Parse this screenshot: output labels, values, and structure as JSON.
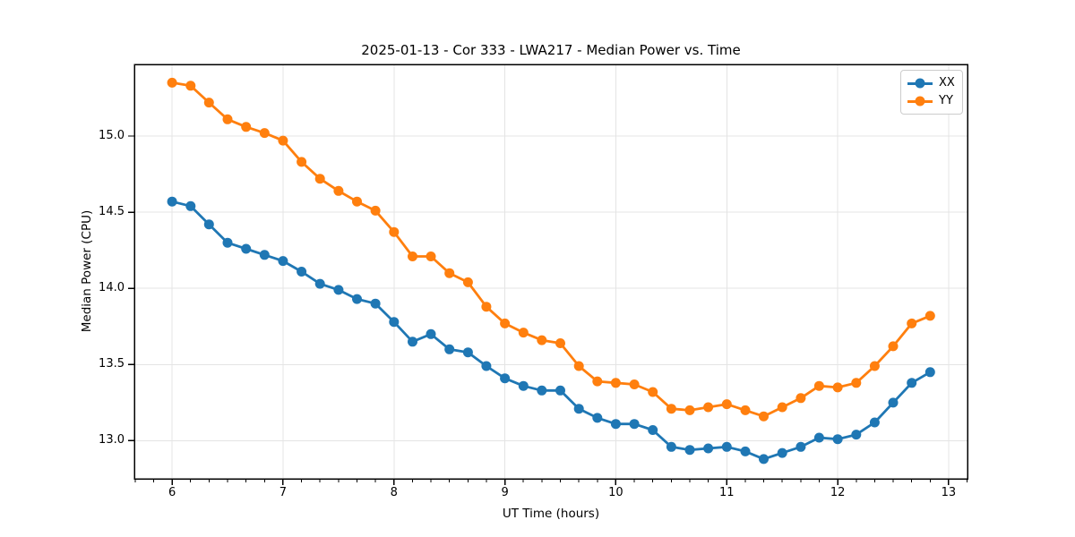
{
  "chart_data": {
    "type": "line",
    "title": "2025-01-13 - Cor 333 - LWA217 - Median Power vs. Time",
    "xlabel": "UT Time (hours)",
    "ylabel": "Median Power (CPU)",
    "x": [
      6.0,
      6.167,
      6.333,
      6.5,
      6.667,
      6.833,
      7.0,
      7.167,
      7.333,
      7.5,
      7.667,
      7.833,
      8.0,
      8.167,
      8.333,
      8.5,
      8.667,
      8.833,
      9.0,
      9.167,
      9.333,
      9.5,
      9.667,
      9.833,
      10.0,
      10.167,
      10.333,
      10.5,
      10.667,
      10.833,
      11.0,
      11.167,
      11.333,
      11.5,
      11.667,
      11.833,
      12.0,
      12.167,
      12.333,
      12.5,
      12.667,
      12.833
    ],
    "series": [
      {
        "name": "XX",
        "color": "#1f77b4",
        "values": [
          14.57,
          14.54,
          14.42,
          14.3,
          14.26,
          14.22,
          14.18,
          14.11,
          14.03,
          13.99,
          13.93,
          13.9,
          13.78,
          13.65,
          13.7,
          13.6,
          13.58,
          13.49,
          13.41,
          13.36,
          13.33,
          13.33,
          13.21,
          13.15,
          13.11,
          13.11,
          13.07,
          12.96,
          12.94,
          12.95,
          12.96,
          12.93,
          12.88,
          12.92,
          12.96,
          13.02,
          13.01,
          13.04,
          13.12,
          13.25,
          13.38,
          13.45
        ]
      },
      {
        "name": "YY",
        "color": "#ff7f0e",
        "values": [
          15.35,
          15.33,
          15.22,
          15.11,
          15.06,
          15.02,
          14.97,
          14.83,
          14.72,
          14.64,
          14.57,
          14.51,
          14.37,
          14.21,
          14.21,
          14.1,
          14.04,
          13.88,
          13.77,
          13.71,
          13.66,
          13.64,
          13.49,
          13.39,
          13.38,
          13.37,
          13.32,
          13.21,
          13.2,
          13.22,
          13.24,
          13.2,
          13.16,
          13.22,
          13.28,
          13.36,
          13.35,
          13.38,
          13.49,
          13.62,
          13.77,
          13.82
        ]
      }
    ],
    "xlim": [
      5.66,
      13.17
    ],
    "ylim": [
      12.75,
      15.47
    ],
    "xticks": [
      6,
      7,
      8,
      9,
      10,
      11,
      12,
      13
    ],
    "yticks": [
      13.0,
      13.5,
      14.0,
      14.5,
      15.0
    ],
    "x_minor_tick_step": 0.1667,
    "grid": true,
    "legend_position": "upper right",
    "marker": "circle",
    "grid_color": "#e4e4e4",
    "spine_color": "#000000"
  }
}
